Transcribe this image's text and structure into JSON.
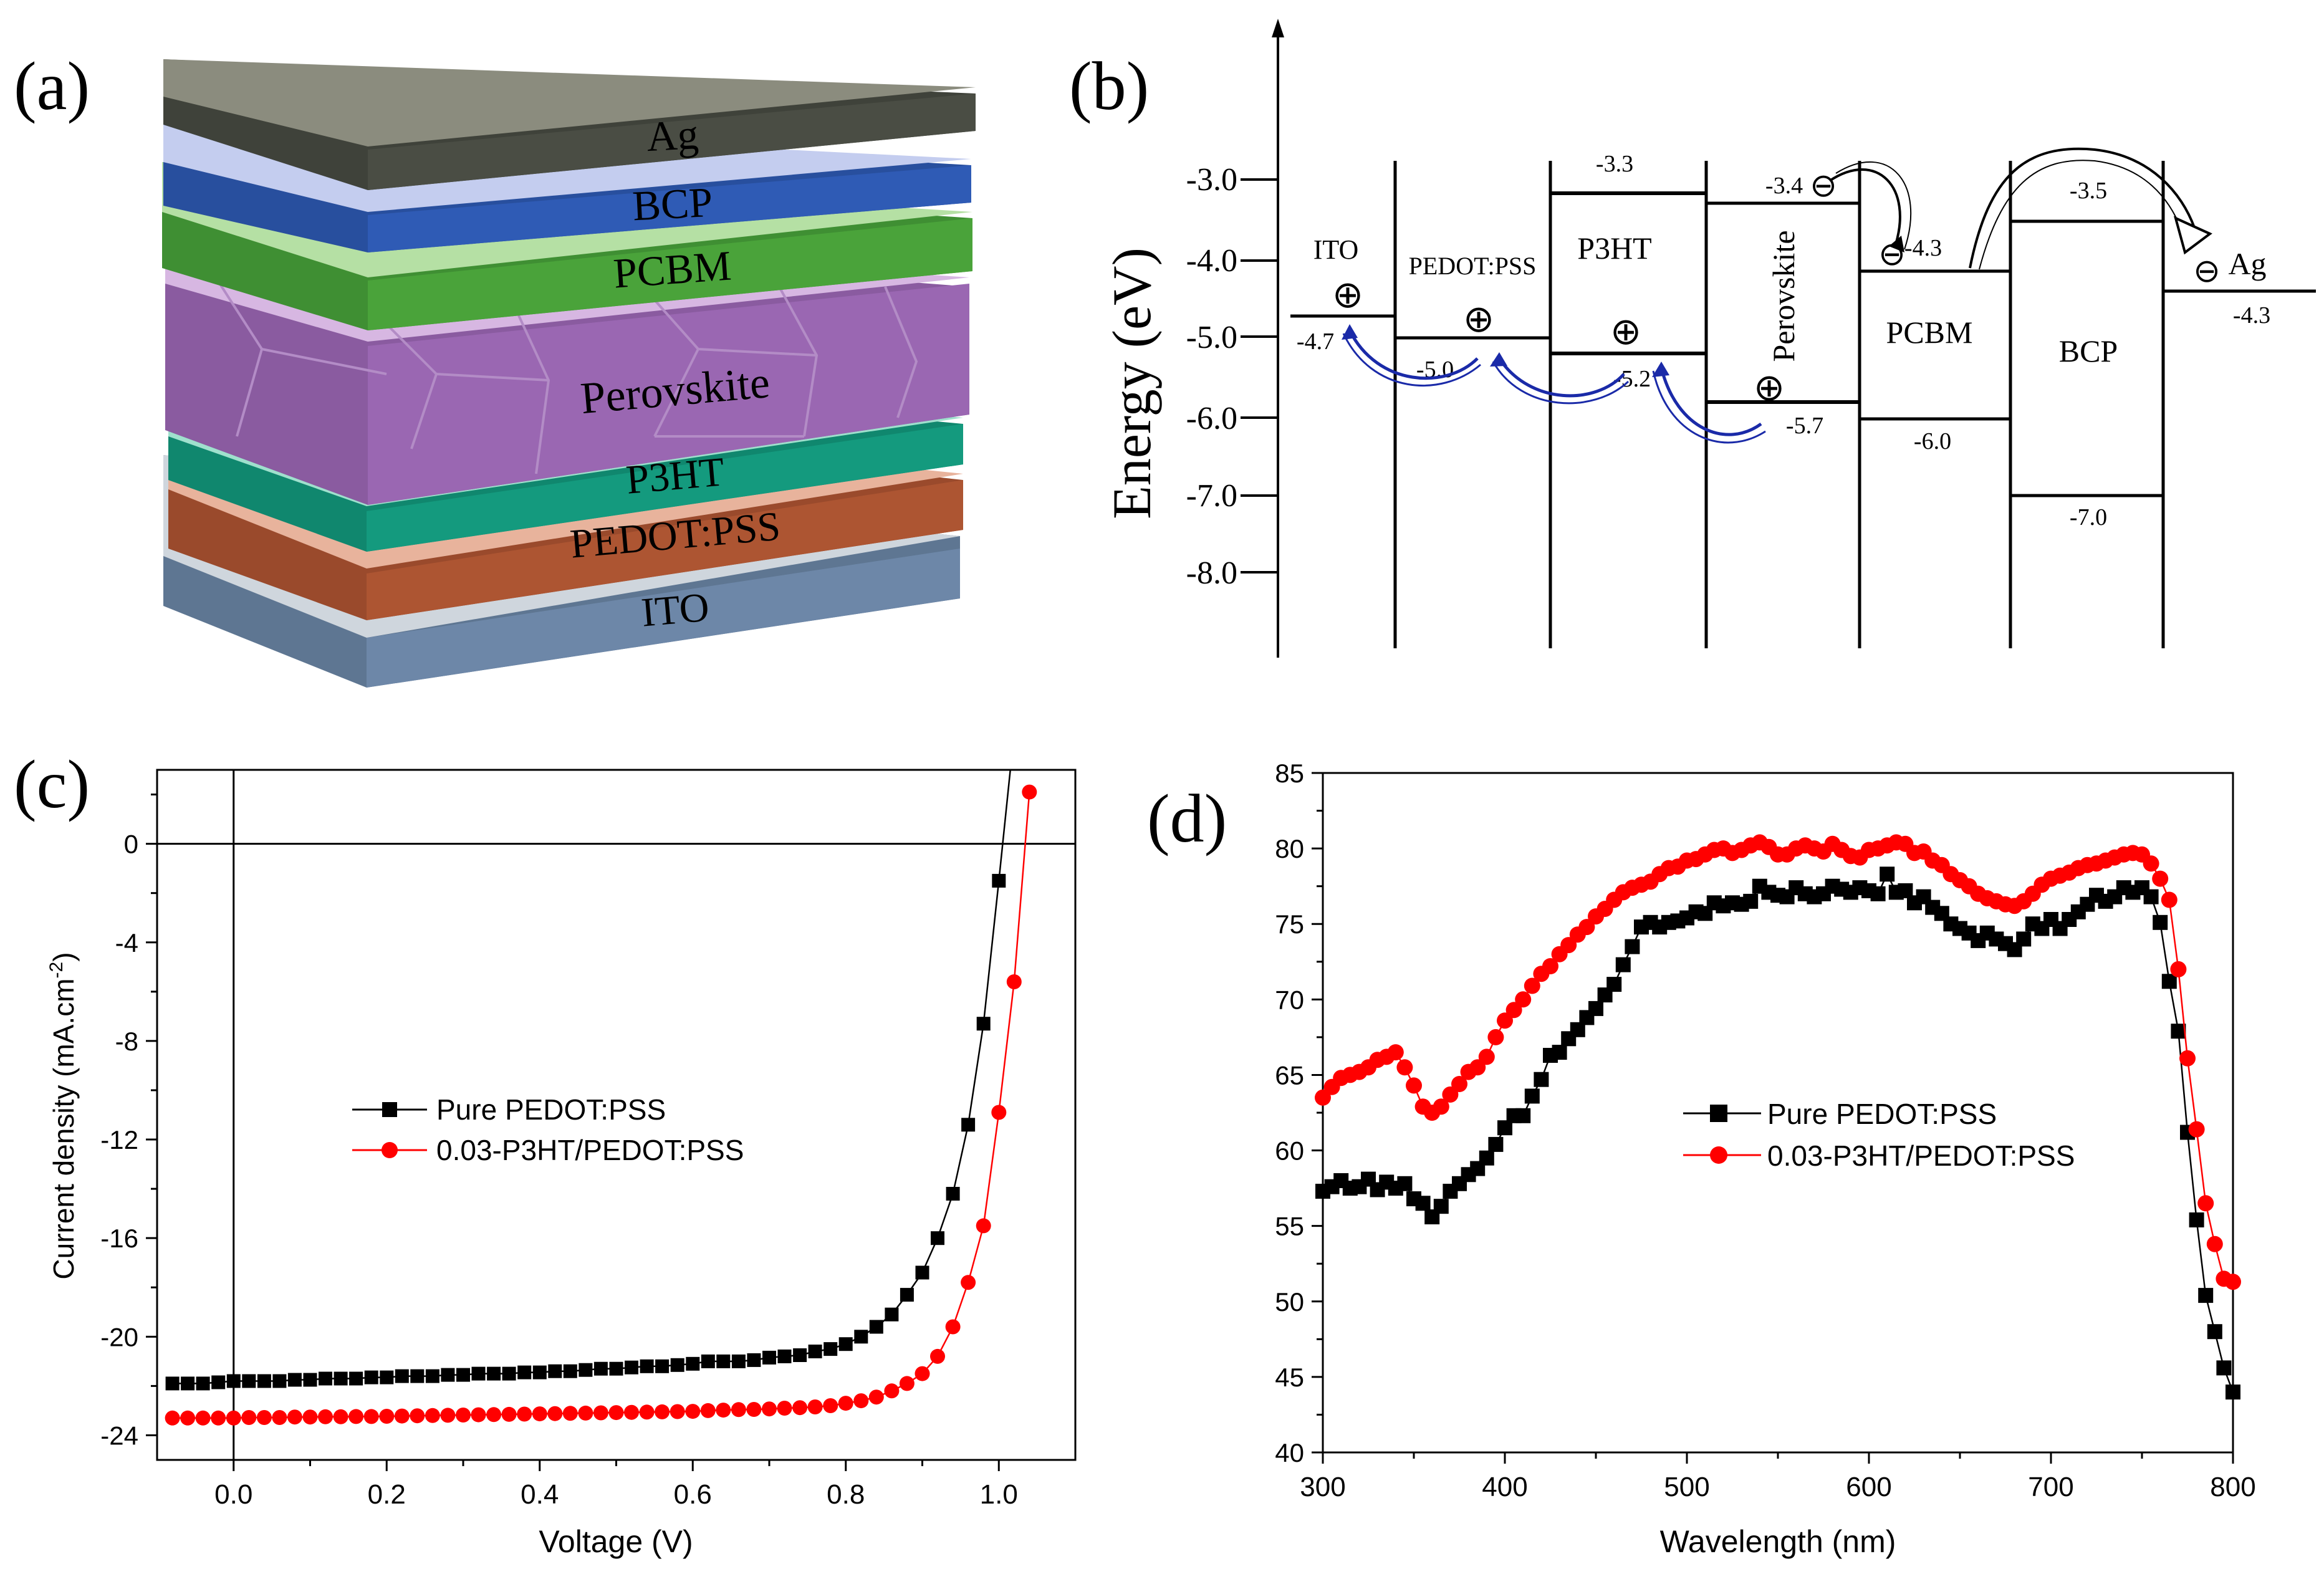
{
  "panels": {
    "a": {
      "label": "(a)",
      "layers": [
        "Ag",
        "BCP",
        "PCBM",
        "Perovskite",
        "P3HT",
        "PEDOT:PSS",
        "ITO"
      ]
    },
    "b": {
      "label": "(b)",
      "ylabel": "Energy (eV)",
      "yticks": [
        "-3.0",
        "-4.0",
        "-5.0",
        "-6.0",
        "-7.0",
        "-8.0"
      ],
      "materials": [
        "ITO",
        "PEDOT:PSS",
        "P3HT",
        "Perovskite",
        "PCBM",
        "BCP",
        "Ag"
      ],
      "levels": [
        "-4.7",
        "-5.0",
        "-3.3",
        "-5.2",
        "-3.4",
        "-5.7",
        "-4.3",
        "-6.0",
        "-3.5",
        "-7.0",
        "-4.3"
      ],
      "hole_symbol": "⊕",
      "electron_symbol": "⊖"
    },
    "c": {
      "label": "(c)"
    },
    "d": {
      "label": "(d)"
    }
  },
  "colors": {
    "series1": "#000000",
    "series2": "#ff0000",
    "arrow": "#1a2aa8",
    "ag": "#4a4d44",
    "bcp": "#2f5bb5",
    "pcbm": "#4aa33a",
    "perovskite": "#9a67b2",
    "p3ht": "#149a7e",
    "pedot": "#ad5532",
    "ito": "#6d87a8"
  },
  "chart_data": [
    {
      "type": "line",
      "title": "",
      "xlabel": "Voltage (V)",
      "ylabel": "Current density (mA.cm-2)",
      "ylabel_main": "Current density (mA.cm",
      "ylabel_sup": "-2",
      "ylabel_close": ")",
      "xlim": [
        -0.1,
        1.1
      ],
      "ylim": [
        -25,
        3
      ],
      "xticks": [
        "0.0",
        "0.2",
        "0.4",
        "0.6",
        "0.8",
        "1.0"
      ],
      "yticks": [
        "0",
        "-4",
        "-8",
        "-12",
        "-16",
        "-20",
        "-24"
      ],
      "series": [
        {
          "name": "Pure PEDOT:PSS",
          "x": [
            -0.08,
            -0.06,
            -0.04,
            -0.02,
            0,
            0.02,
            0.04,
            0.06,
            0.08,
            0.1,
            0.12,
            0.14,
            0.16,
            0.18,
            0.2,
            0.22,
            0.24,
            0.26,
            0.28,
            0.3,
            0.32,
            0.34,
            0.36,
            0.38,
            0.4,
            0.42,
            0.44,
            0.46,
            0.48,
            0.5,
            0.52,
            0.54,
            0.56,
            0.58,
            0.6,
            0.62,
            0.64,
            0.66,
            0.68,
            0.7,
            0.72,
            0.74,
            0.76,
            0.78,
            0.8,
            0.82,
            0.84,
            0.86,
            0.88,
            0.9,
            0.92,
            0.94,
            0.96,
            0.98,
            1.0
          ],
          "y": [
            -21.9,
            -21.9,
            -21.9,
            -21.85,
            -21.8,
            -21.8,
            -21.8,
            -21.8,
            -21.75,
            -21.75,
            -21.7,
            -21.7,
            -21.7,
            -21.65,
            -21.65,
            -21.6,
            -21.6,
            -21.6,
            -21.55,
            -21.55,
            -21.5,
            -21.5,
            -21.5,
            -21.45,
            -21.45,
            -21.4,
            -21.4,
            -21.35,
            -21.3,
            -21.3,
            -21.25,
            -21.2,
            -21.2,
            -21.15,
            -21.1,
            -21.0,
            -21.0,
            -21.0,
            -20.95,
            -20.85,
            -20.8,
            -20.75,
            -20.6,
            -20.5,
            -20.3,
            -20.0,
            -19.6,
            -19.1,
            -18.3,
            -17.4,
            -16.0,
            -14.2,
            -11.4,
            -7.3,
            -1.5
          ]
        },
        {
          "name": "0.03-P3HT/PEDOT:PSS",
          "x": [
            -0.08,
            -0.06,
            -0.04,
            -0.02,
            0,
            0.02,
            0.04,
            0.06,
            0.08,
            0.1,
            0.12,
            0.14,
            0.16,
            0.18,
            0.2,
            0.22,
            0.24,
            0.26,
            0.28,
            0.3,
            0.32,
            0.34,
            0.36,
            0.38,
            0.4,
            0.42,
            0.44,
            0.46,
            0.48,
            0.5,
            0.52,
            0.54,
            0.56,
            0.58,
            0.6,
            0.62,
            0.64,
            0.66,
            0.68,
            0.7,
            0.72,
            0.74,
            0.76,
            0.78,
            0.8,
            0.82,
            0.84,
            0.86,
            0.88,
            0.9,
            0.92,
            0.94,
            0.96,
            0.98,
            1.0,
            1.02,
            1.04
          ],
          "y": [
            -23.3,
            -23.3,
            -23.3,
            -23.3,
            -23.3,
            -23.28,
            -23.28,
            -23.28,
            -23.26,
            -23.26,
            -23.25,
            -23.25,
            -23.24,
            -23.24,
            -23.23,
            -23.22,
            -23.21,
            -23.2,
            -23.19,
            -23.18,
            -23.17,
            -23.16,
            -23.15,
            -23.14,
            -23.13,
            -23.12,
            -23.11,
            -23.1,
            -23.09,
            -23.08,
            -23.07,
            -23.06,
            -23.05,
            -23.04,
            -23.03,
            -23.0,
            -22.98,
            -22.96,
            -22.95,
            -22.93,
            -22.9,
            -22.88,
            -22.85,
            -22.8,
            -22.7,
            -22.6,
            -22.45,
            -22.2,
            -21.9,
            -21.5,
            -20.8,
            -19.6,
            -17.8,
            -15.5,
            -10.9,
            -5.6,
            2.1
          ]
        }
      ]
    },
    {
      "type": "line",
      "title": "",
      "xlabel": "Wavelength (nm)",
      "ylabel": "",
      "xlim": [
        300,
        800
      ],
      "ylim": [
        40,
        85
      ],
      "xticks": [
        "300",
        "400",
        "500",
        "600",
        "700",
        "800"
      ],
      "yticks": [
        "40",
        "45",
        "50",
        "55",
        "60",
        "65",
        "70",
        "75",
        "80",
        "85"
      ],
      "series": [
        {
          "name": "Pure PEDOT:PSS",
          "x": [
            300,
            305,
            310,
            315,
            320,
            325,
            330,
            335,
            340,
            345,
            350,
            355,
            360,
            365,
            370,
            375,
            380,
            385,
            390,
            395,
            400,
            405,
            410,
            415,
            420,
            425,
            430,
            435,
            440,
            445,
            450,
            455,
            460,
            465,
            470,
            475,
            480,
            485,
            490,
            495,
            500,
            505,
            510,
            515,
            520,
            525,
            530,
            535,
            540,
            545,
            550,
            555,
            560,
            565,
            570,
            575,
            580,
            585,
            590,
            595,
            600,
            605,
            610,
            615,
            620,
            625,
            630,
            635,
            640,
            645,
            650,
            655,
            660,
            665,
            670,
            675,
            680,
            685,
            690,
            695,
            700,
            705,
            710,
            715,
            720,
            725,
            730,
            735,
            740,
            745,
            750,
            755,
            760,
            765,
            770,
            775,
            780,
            785,
            790,
            795,
            800
          ],
          "y": [
            57.3,
            57.6,
            58.0,
            57.5,
            57.6,
            58.1,
            57.4,
            57.9,
            57.5,
            57.8,
            56.8,
            56.5,
            55.6,
            56.3,
            57.3,
            57.8,
            58.4,
            58.8,
            59.5,
            60.4,
            61.5,
            62.3,
            62.3,
            63.6,
            64.7,
            66.3,
            66.5,
            67.4,
            68.0,
            68.8,
            69.4,
            70.3,
            71.0,
            72.3,
            73.5,
            74.8,
            75.1,
            74.8,
            75.1,
            75.2,
            75.4,
            75.8,
            75.7,
            76.4,
            76.2,
            76.4,
            76.3,
            76.5,
            77.5,
            77.1,
            76.9,
            76.8,
            77.4,
            77.0,
            76.8,
            77.0,
            77.5,
            77.3,
            77.1,
            77.4,
            77.2,
            77.0,
            78.3,
            77.1,
            77.2,
            76.4,
            76.8,
            76.1,
            75.7,
            75.0,
            74.7,
            74.4,
            73.9,
            74.4,
            74.0,
            73.7,
            73.3,
            74.0,
            75.0,
            74.7,
            75.3,
            74.7,
            75.3,
            75.8,
            76.3,
            76.9,
            76.5,
            76.8,
            77.4,
            77.1,
            77.4,
            76.8,
            75.1,
            71.2,
            67.9,
            61.2,
            55.4,
            50.4,
            48.0,
            45.6,
            44.0
          ]
        },
        {
          "name": "0.03-P3HT/PEDOT:PSS",
          "x": [
            300,
            305,
            310,
            315,
            320,
            325,
            330,
            335,
            340,
            345,
            350,
            355,
            360,
            365,
            370,
            375,
            380,
            385,
            390,
            395,
            400,
            405,
            410,
            415,
            420,
            425,
            430,
            435,
            440,
            445,
            450,
            455,
            460,
            465,
            470,
            475,
            480,
            485,
            490,
            495,
            500,
            505,
            510,
            515,
            520,
            525,
            530,
            535,
            540,
            545,
            550,
            555,
            560,
            565,
            570,
            575,
            580,
            585,
            590,
            595,
            600,
            605,
            610,
            615,
            620,
            625,
            630,
            635,
            640,
            645,
            650,
            655,
            660,
            665,
            670,
            675,
            680,
            685,
            690,
            695,
            700,
            705,
            710,
            715,
            720,
            725,
            730,
            735,
            740,
            745,
            750,
            755,
            760,
            765,
            770,
            775,
            780,
            785,
            790,
            795,
            800
          ],
          "y": [
            63.5,
            64.2,
            64.8,
            65.0,
            65.2,
            65.5,
            66.0,
            66.2,
            66.5,
            65.5,
            64.3,
            62.9,
            62.5,
            62.9,
            63.7,
            64.4,
            65.2,
            65.5,
            66.2,
            67.5,
            68.6,
            69.3,
            70.0,
            70.9,
            71.7,
            72.2,
            73.0,
            73.6,
            74.3,
            74.8,
            75.5,
            76.0,
            76.6,
            77.1,
            77.4,
            77.6,
            77.8,
            78.3,
            78.7,
            78.8,
            79.2,
            79.3,
            79.6,
            79.9,
            80.0,
            79.7,
            79.9,
            80.2,
            80.4,
            80.1,
            79.6,
            79.6,
            80.0,
            80.2,
            80.0,
            79.8,
            80.3,
            79.9,
            79.5,
            79.4,
            79.9,
            80.0,
            80.2,
            80.4,
            80.3,
            79.7,
            79.8,
            79.2,
            78.9,
            78.3,
            77.9,
            77.5,
            77.0,
            76.7,
            76.5,
            76.3,
            76.2,
            76.5,
            77.0,
            77.6,
            78.0,
            78.2,
            78.4,
            78.7,
            78.9,
            79.0,
            79.2,
            79.4,
            79.6,
            79.7,
            79.6,
            79.0,
            78.0,
            76.6,
            72.0,
            66.1,
            61.4,
            56.5,
            53.8,
            51.5,
            51.3
          ]
        }
      ]
    }
  ]
}
